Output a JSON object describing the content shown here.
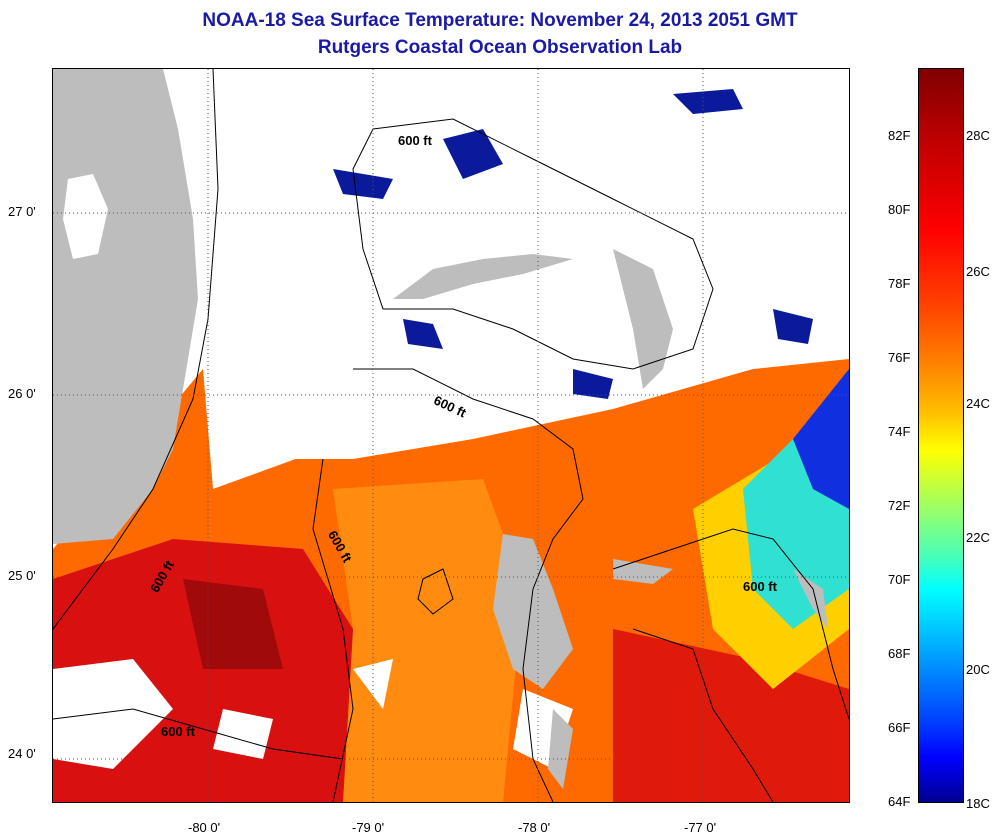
{
  "title": {
    "line1": "NOAA-18 Sea Surface Temperature:  November 24, 2013 2051 GMT",
    "line2": "Rutgers Coastal Ocean Observation Lab"
  },
  "map": {
    "lat_labels": [
      "27 0'",
      "26 0'",
      "25 0'",
      "24 0'"
    ],
    "lon_labels": [
      "-80 0'",
      "-79 0'",
      "-78 0'",
      "-77 0'"
    ],
    "contour_labels": [
      "600 ft",
      "600 ft",
      "600 ft",
      "600 ft",
      "600 ft",
      "600 ft"
    ],
    "land_color": "#bdbdbd",
    "cloud_color": "#ffffff"
  },
  "colorbar": {
    "fahrenheit_labels": [
      "82F",
      "80F",
      "78F",
      "76F",
      "74F",
      "72F",
      "70F",
      "68F",
      "66F",
      "64F"
    ],
    "celsius_labels": [
      "28C",
      "26C",
      "24C",
      "22C",
      "20C",
      "18C"
    ],
    "range_c": [
      18,
      29.5
    ],
    "scale": "jet"
  }
}
